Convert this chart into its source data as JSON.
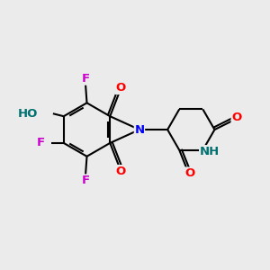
{
  "bg_color": "#ebebeb",
  "bond_color": "#000000",
  "bond_width": 1.5,
  "atom_colors": {
    "O": "#ff0000",
    "N": "#0000ff",
    "F": "#cc00cc",
    "HO": "#007070",
    "NH": "#007070"
  },
  "font_size_atoms": 9.5,
  "title": ""
}
